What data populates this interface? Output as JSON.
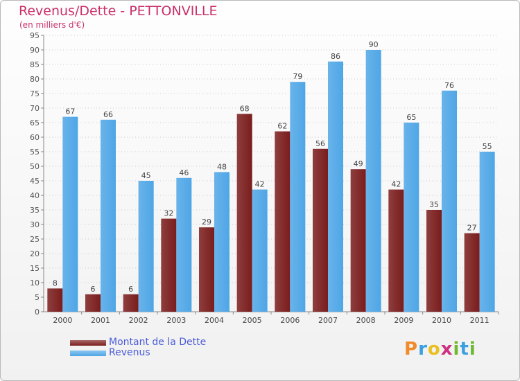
{
  "header": {
    "title": "Revenus/Dette - PETTONVILLE",
    "subtitle": "(en milliers d'€)"
  },
  "colors": {
    "dette": "#7a1c1c",
    "revenus": "#4ea6e6",
    "title": "#c9306a",
    "legend_text": "#4a5cd8",
    "grid": "#cccccc"
  },
  "legend": {
    "items": [
      {
        "label": "Montant de la Dette",
        "color": "#7a1c1c"
      },
      {
        "label": "Revenus",
        "color": "#4ea6e6"
      }
    ]
  },
  "logo": {
    "text": "Proxiti",
    "letters": [
      {
        "char": "P",
        "color": "#f08a2a"
      },
      {
        "char": "r",
        "color": "#3aa0e0"
      },
      {
        "char": "o",
        "color": "#e8c020"
      },
      {
        "char": "x",
        "color": "#d03080"
      },
      {
        "char": "i",
        "color": "#70b830"
      },
      {
        "char": "t",
        "color": "#3aa0e0"
      },
      {
        "char": "i",
        "color": "#70b830"
      }
    ]
  },
  "chart_data": {
    "type": "bar",
    "title": "Revenus/Dette - PETTONVILLE",
    "subtitle": "(en milliers d'€)",
    "categories": [
      "2000",
      "2001",
      "2002",
      "2003",
      "2004",
      "2005",
      "2006",
      "2007",
      "2008",
      "2009",
      "2010",
      "2011"
    ],
    "series": [
      {
        "name": "Montant de la Dette",
        "color": "#7a1c1c",
        "values": [
          8,
          6,
          6,
          32,
          29,
          68,
          62,
          56,
          49,
          42,
          35,
          27
        ]
      },
      {
        "name": "Revenus",
        "color": "#4ea6e6",
        "values": [
          67,
          66,
          45,
          46,
          48,
          42,
          79,
          86,
          90,
          65,
          76,
          55
        ]
      }
    ],
    "ylim": [
      0,
      95
    ],
    "yticks": [
      0,
      5,
      10,
      15,
      20,
      25,
      30,
      35,
      40,
      45,
      50,
      55,
      60,
      65,
      70,
      75,
      80,
      85,
      90,
      95
    ],
    "grid": true,
    "legend_position": "bottom-left"
  }
}
